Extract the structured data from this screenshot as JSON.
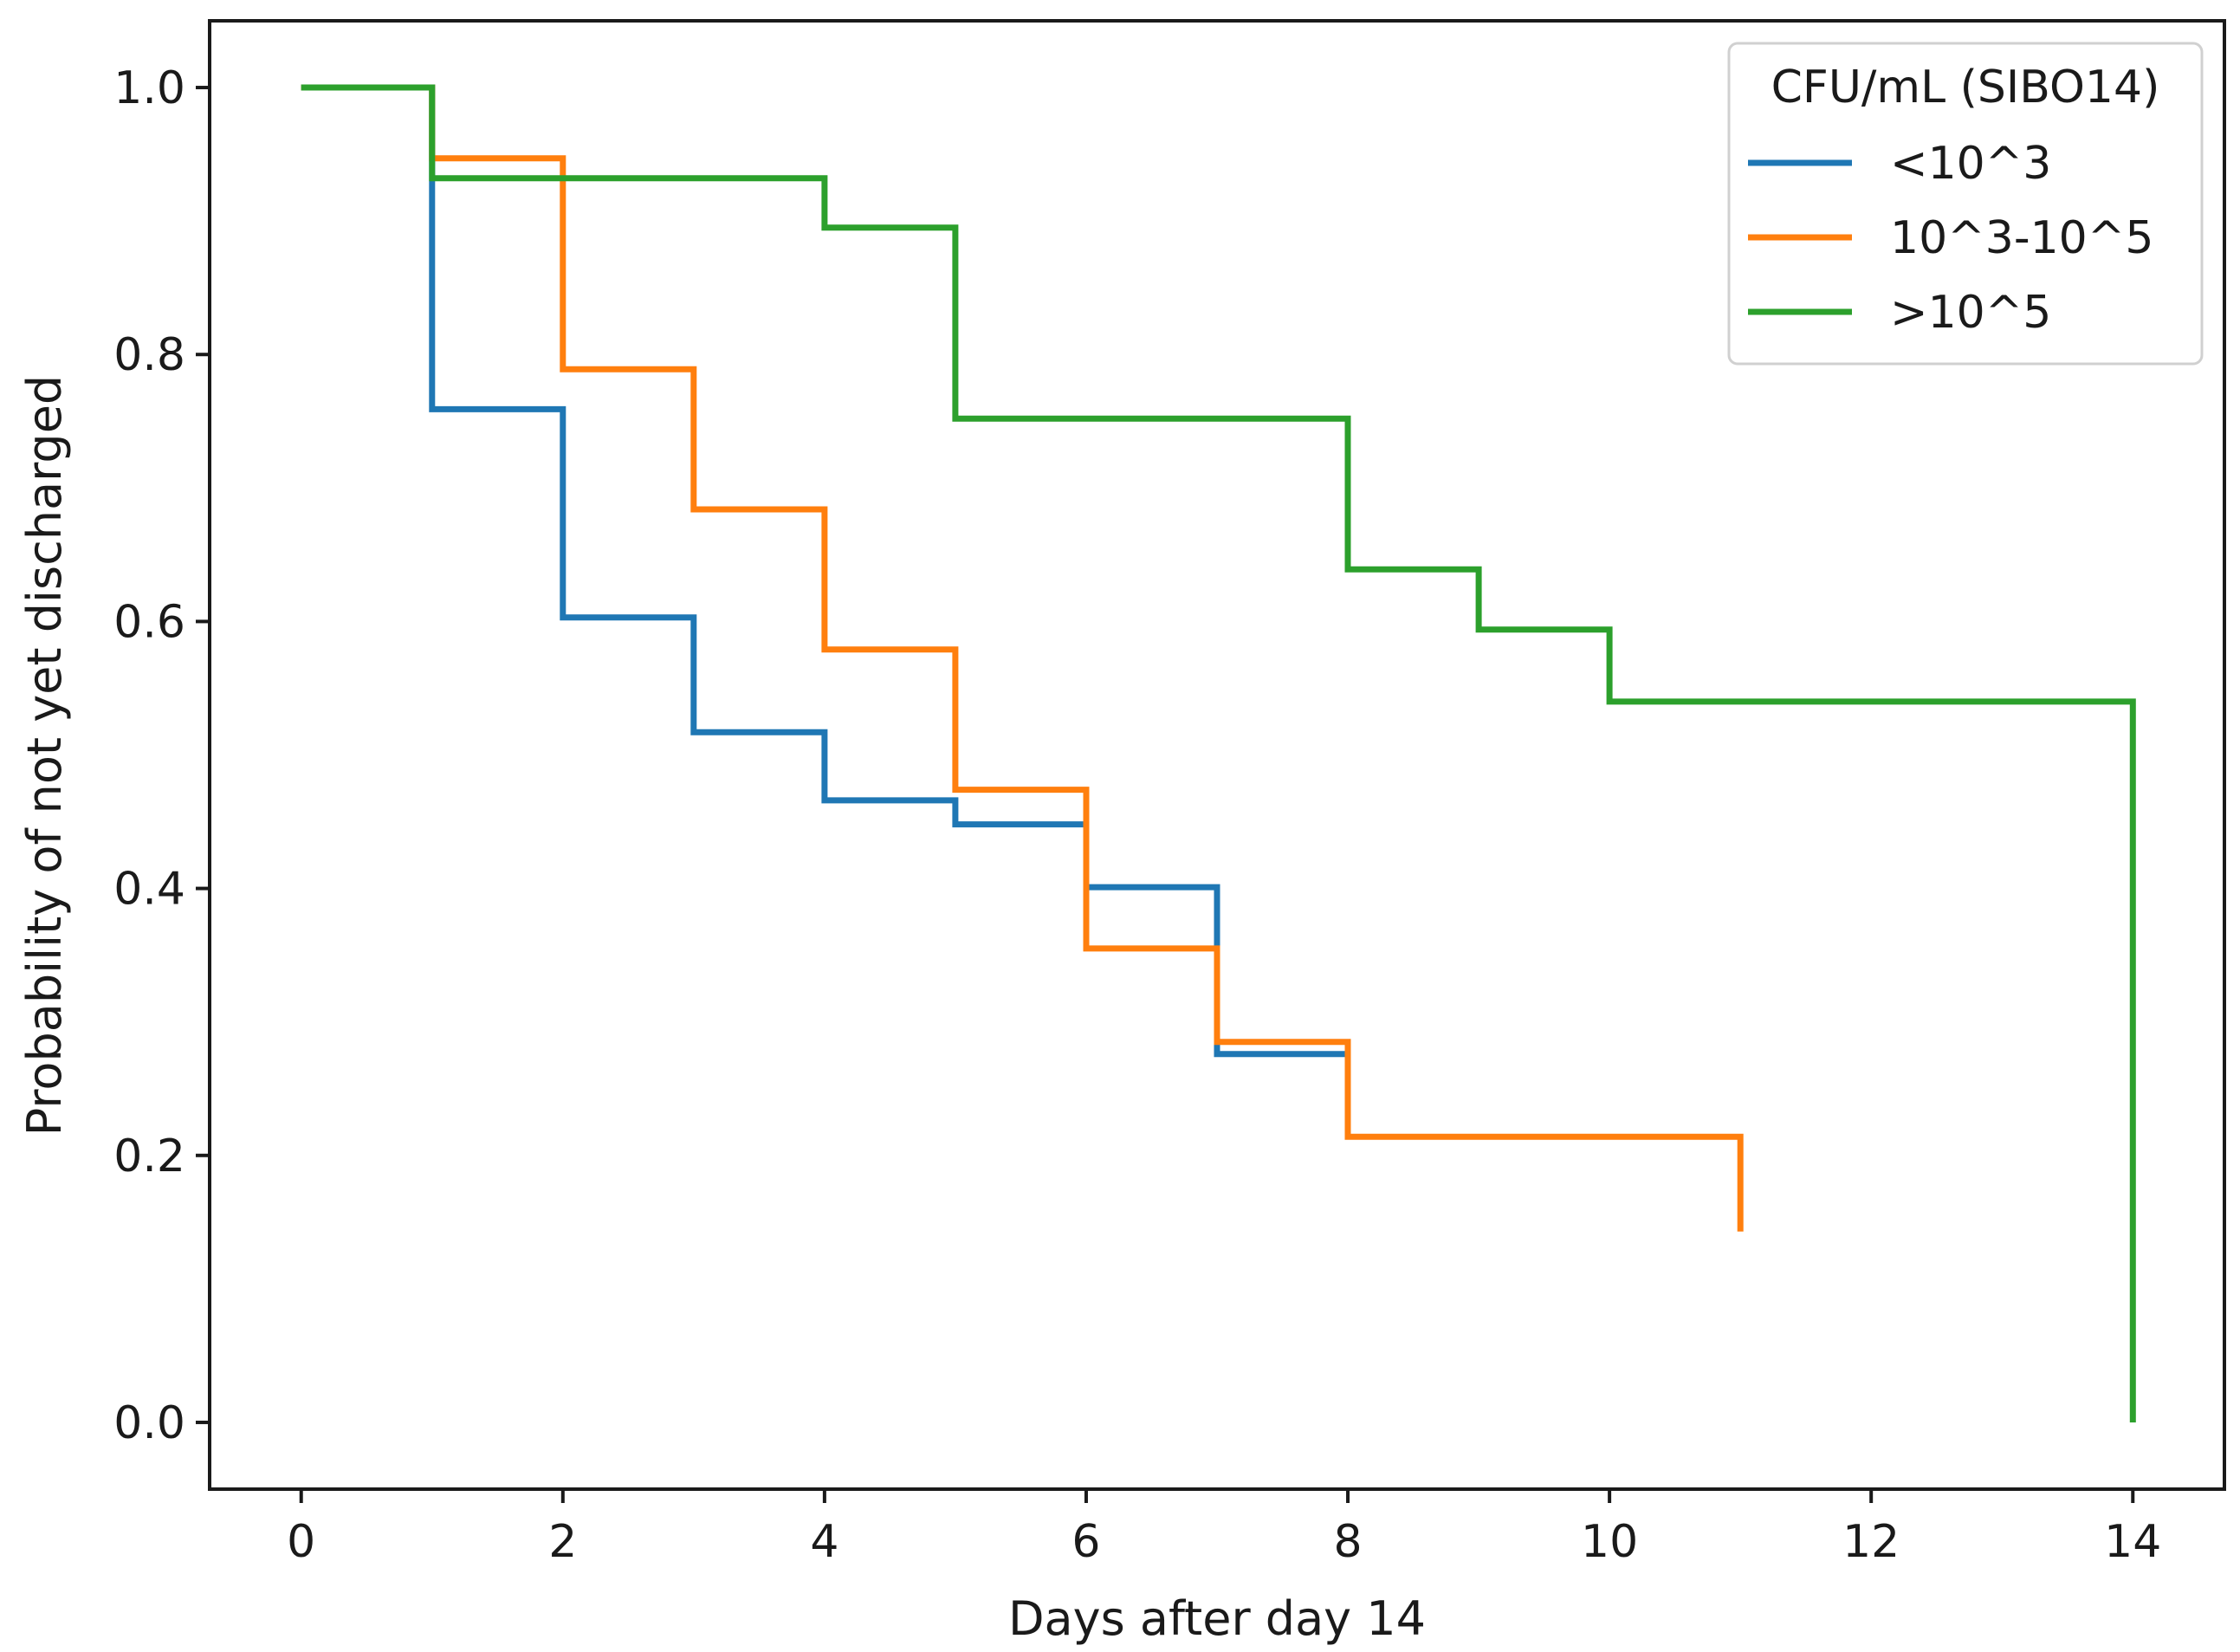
{
  "chart_data": {
    "type": "line",
    "step": true,
    "title": "",
    "xlabel": "Days after day 14",
    "ylabel": "Probability of not yet discharged",
    "xlim": [
      -0.7,
      14.7
    ],
    "ylim": [
      -0.05,
      1.05
    ],
    "xticks": [
      0,
      2,
      4,
      6,
      8,
      10,
      12,
      14
    ],
    "yticks": [
      "0.0",
      "0.2",
      "0.4",
      "0.6",
      "0.8",
      "1.0"
    ],
    "grid": false,
    "legend": {
      "title": "CFU/mL (SIBO14)",
      "position": "top-right"
    },
    "series": [
      {
        "name": "<10^3",
        "color": "#1f77b4",
        "x": [
          0,
          1,
          2,
          3,
          4,
          5,
          6,
          7,
          8
        ],
        "y": [
          1.0,
          0.759,
          0.603,
          0.517,
          0.466,
          0.448,
          0.401,
          0.276,
          0.276
        ]
      },
      {
        "name": "10^3-10^5",
        "color": "#ff7f0e",
        "x": [
          0,
          1,
          2,
          3,
          4,
          5,
          6,
          7,
          8,
          11
        ],
        "y": [
          1.0,
          0.947,
          0.789,
          0.684,
          0.579,
          0.474,
          0.355,
          0.285,
          0.214,
          0.143
        ]
      },
      {
        "name": ">10^5",
        "color": "#2ca02c",
        "x": [
          0,
          1,
          4,
          5,
          8,
          9,
          10,
          14
        ],
        "y": [
          1.0,
          0.932,
          0.895,
          0.752,
          0.639,
          0.594,
          0.54,
          0.0
        ]
      }
    ]
  }
}
